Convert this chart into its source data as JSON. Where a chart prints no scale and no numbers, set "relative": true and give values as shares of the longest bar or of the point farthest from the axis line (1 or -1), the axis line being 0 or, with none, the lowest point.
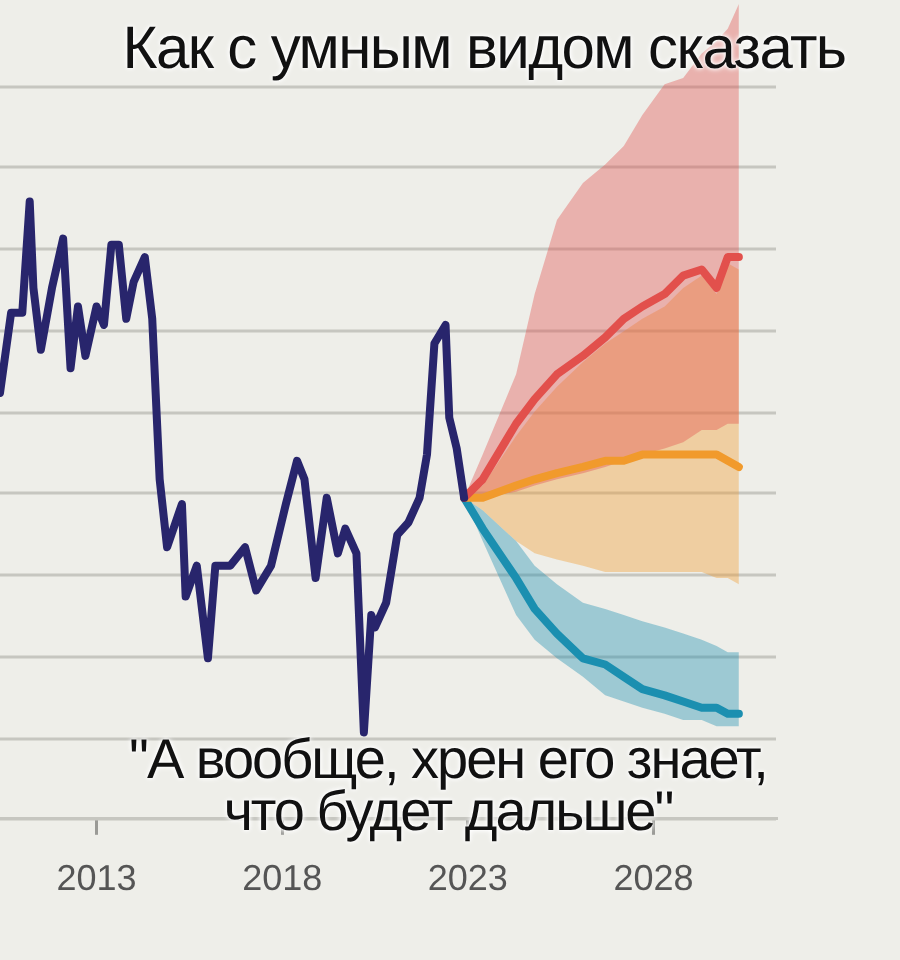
{
  "chart_data": {
    "type": "line",
    "title": "Как с умным видом сказать",
    "annotations": [
      "\"А вообще, хрен его знает, что будет дальше\""
    ],
    "relative": true,
    "xlim": [
      2010.4,
      2031.3
    ],
    "xticks": [
      2013,
      2018,
      2023,
      2028
    ],
    "grid": "y",
    "legend": false,
    "marker": "none",
    "line_style": "solid",
    "series": [
      {
        "color": "#28256c",
        "x": [
          2010.4,
          2010.7,
          2011.0,
          2011.2,
          2011.3,
          2011.5,
          2011.8,
          2012.1,
          2012.3,
          2012.5,
          2012.7,
          2013.0,
          2013.2,
          2013.4,
          2013.6,
          2013.8,
          2014.0,
          2014.3,
          2014.5,
          2014.7,
          2014.9,
          2015.3,
          2015.4,
          2015.7,
          2016.0,
          2016.2,
          2016.6,
          2017.0,
          2017.3,
          2017.7,
          2018.1,
          2018.4,
          2018.6,
          2018.9,
          2019.2,
          2019.5,
          2019.7,
          2020.0,
          2020.2,
          2020.4,
          2020.5,
          2020.8,
          2021.1,
          2021.4,
          2021.7,
          2021.9,
          2022.1,
          2022.4,
          2022.5,
          2022.7,
          2022.9
        ],
        "values": [
          0.69,
          0.82,
          0.82,
          1,
          0.86,
          0.76,
          0.86,
          0.94,
          0.73,
          0.83,
          0.75,
          0.83,
          0.8,
          0.93,
          0.93,
          0.81,
          0.87,
          0.91,
          0.81,
          0.55,
          0.44,
          0.51,
          0.36,
          0.41,
          0.26,
          0.41,
          0.41,
          0.44,
          0.37,
          0.41,
          0.51,
          0.58,
          0.55,
          0.39,
          0.52,
          0.43,
          0.47,
          0.43,
          0.14,
          0.33,
          0.31,
          0.35,
          0.46,
          0.48,
          0.52,
          0.59,
          0.77,
          0.8,
          0.65,
          0.6,
          0.52
        ]
      },
      {
        "color": "#e2504c",
        "x": [
          2022.9,
          2023.4,
          2024.3,
          2024.8,
          2025.4,
          2026.1,
          2026.7,
          2027.2,
          2027.7,
          2028.3,
          2028.8,
          2029.3,
          2029.7,
          2030.0,
          2030.3
        ],
        "values": [
          0.52,
          0.55,
          0.64,
          0.68,
          0.72,
          0.75,
          0.78,
          0.81,
          0.83,
          0.85,
          0.88,
          0.89,
          0.86,
          0.91,
          0.91
        ],
        "lower": [
          0.52,
          0.52,
          0.53,
          0.54,
          0.55,
          0.56,
          0.57,
          0.58,
          0.59,
          0.6,
          0.61,
          0.63,
          0.63,
          0.64,
          0.64
        ],
        "upper": [
          0.52,
          0.59,
          0.72,
          0.85,
          0.97,
          1.03,
          1.06,
          1.09,
          1.14,
          1.19,
          1.2,
          1.24,
          1.26,
          1.28,
          1.32
        ]
      },
      {
        "color": "#f19a2c",
        "x": [
          2022.9,
          2023.4,
          2024.3,
          2024.8,
          2025.4,
          2026.1,
          2026.7,
          2027.2,
          2027.7,
          2028.3,
          2028.8,
          2029.3,
          2029.7,
          2030.0,
          2030.3
        ],
        "values": [
          0.52,
          0.52,
          0.54,
          0.55,
          0.56,
          0.57,
          0.58,
          0.58,
          0.59,
          0.59,
          0.59,
          0.59,
          0.59,
          0.58,
          0.57
        ],
        "lower": [
          0.52,
          0.5,
          0.45,
          0.43,
          0.42,
          0.41,
          0.4,
          0.4,
          0.4,
          0.4,
          0.4,
          0.4,
          0.39,
          0.39,
          0.38
        ],
        "upper": [
          0.52,
          0.54,
          0.62,
          0.66,
          0.7,
          0.74,
          0.77,
          0.79,
          0.81,
          0.83,
          0.86,
          0.88,
          0.85,
          0.9,
          0.89
        ]
      },
      {
        "color": "#1b8fb0",
        "x": [
          2022.9,
          2023.4,
          2024.3,
          2024.8,
          2025.4,
          2026.1,
          2026.7,
          2027.2,
          2027.7,
          2028.3,
          2028.8,
          2029.3,
          2029.7,
          2030.0,
          2030.3
        ],
        "values": [
          0.52,
          0.47,
          0.39,
          0.34,
          0.3,
          0.26,
          0.25,
          0.23,
          0.21,
          0.2,
          0.19,
          0.18,
          0.18,
          0.17,
          0.17
        ],
        "lower": [
          0.52,
          0.45,
          0.33,
          0.29,
          0.26,
          0.23,
          0.2,
          0.19,
          0.18,
          0.17,
          0.16,
          0.16,
          0.15,
          0.15,
          0.15
        ],
        "upper": [
          0.52,
          0.5,
          0.45,
          0.41,
          0.38,
          0.35,
          0.34,
          0.33,
          0.32,
          0.31,
          0.3,
          0.29,
          0.28,
          0.27,
          0.27
        ]
      }
    ]
  }
}
